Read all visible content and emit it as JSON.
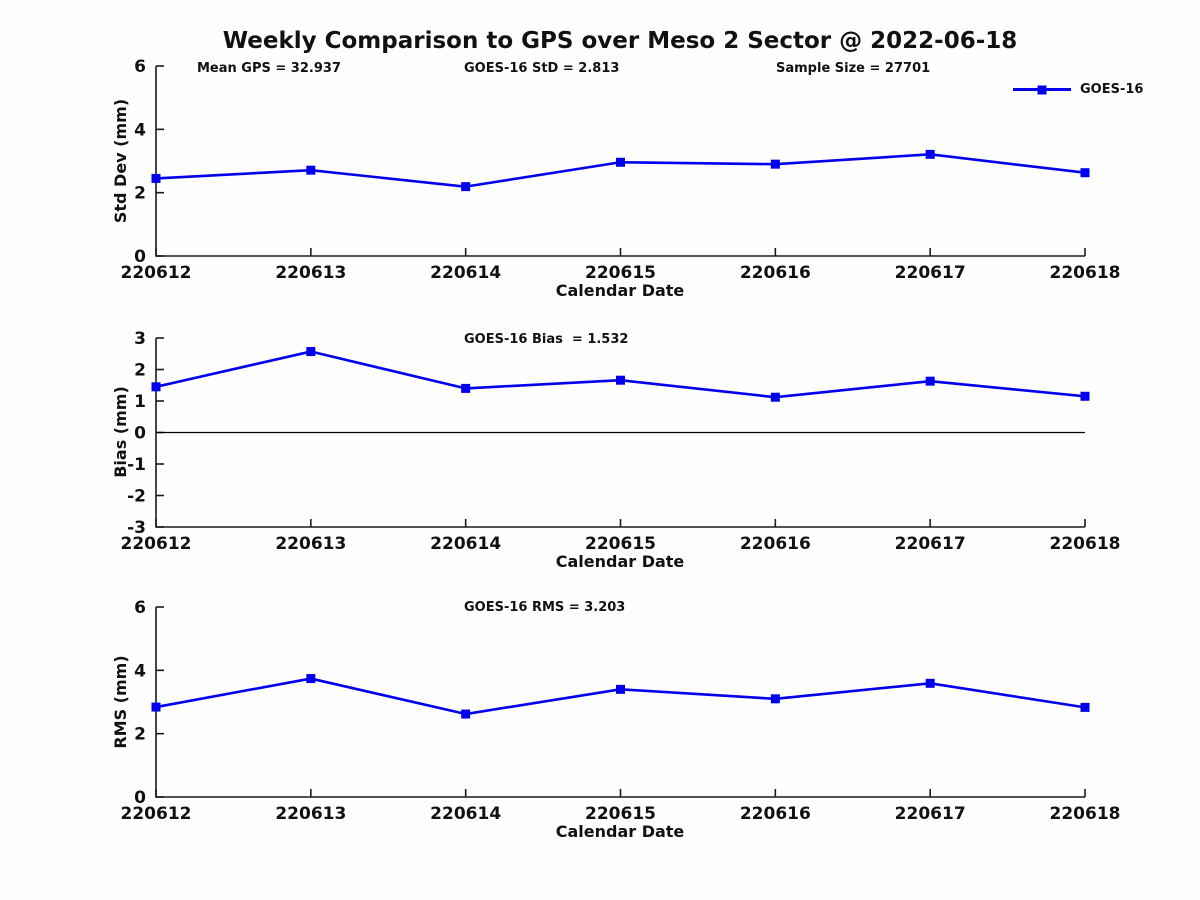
{
  "title": "Weekly Comparison to GPS over Meso 2 Sector @ 2022-06-18",
  "legend": {
    "label": "GOES-16"
  },
  "colors": {
    "line": "#0000ee",
    "axis": "#1a1a1a",
    "text": "#111111",
    "zero_line": "#000000",
    "background": "#fefefe"
  },
  "chart_data": [
    {
      "type": "line",
      "subplot": "std_dev",
      "annotations": [
        "Mean GPS = 32.937",
        "GOES-16 StD = 2.813",
        "Sample Size = 27701"
      ],
      "ylabel": "Std Dev (mm)",
      "xlabel": "Calendar Date",
      "categories": [
        "220612",
        "220613",
        "220614",
        "220615",
        "220616",
        "220617",
        "220618"
      ],
      "series": [
        {
          "name": "GOES-16",
          "values": [
            2.45,
            2.71,
            2.19,
            2.96,
            2.9,
            3.21,
            2.63
          ]
        }
      ],
      "ylim": [
        0,
        6
      ],
      "yticks": [
        0,
        2,
        4,
        6
      ],
      "grid": false,
      "zero_line": false,
      "legend_position": "top-right",
      "marker": "square"
    },
    {
      "type": "line",
      "subplot": "bias",
      "annotations": [
        "GOES-16 Bias  = 1.532"
      ],
      "ylabel": "Bias (mm)",
      "xlabel": "Calendar Date",
      "categories": [
        "220612",
        "220613",
        "220614",
        "220615",
        "220616",
        "220617",
        "220618"
      ],
      "series": [
        {
          "name": "GOES-16",
          "values": [
            1.45,
            2.57,
            1.4,
            1.66,
            1.12,
            1.63,
            1.15
          ]
        }
      ],
      "ylim": [
        -3,
        3
      ],
      "yticks": [
        -3,
        -2,
        -1,
        0,
        1,
        2,
        3
      ],
      "grid": false,
      "zero_line": true,
      "legend_position": "none",
      "marker": "square"
    },
    {
      "type": "line",
      "subplot": "rms",
      "annotations": [
        "GOES-16 RMS = 3.203"
      ],
      "ylabel": "RMS (mm)",
      "xlabel": "Calendar Date",
      "categories": [
        "220612",
        "220613",
        "220614",
        "220615",
        "220616",
        "220617",
        "220618"
      ],
      "series": [
        {
          "name": "GOES-16",
          "values": [
            2.84,
            3.74,
            2.62,
            3.4,
            3.1,
            3.59,
            2.83
          ]
        }
      ],
      "ylim": [
        0,
        6
      ],
      "yticks": [
        0,
        2,
        4,
        6
      ],
      "grid": false,
      "zero_line": false,
      "legend_position": "none",
      "marker": "square"
    }
  ]
}
